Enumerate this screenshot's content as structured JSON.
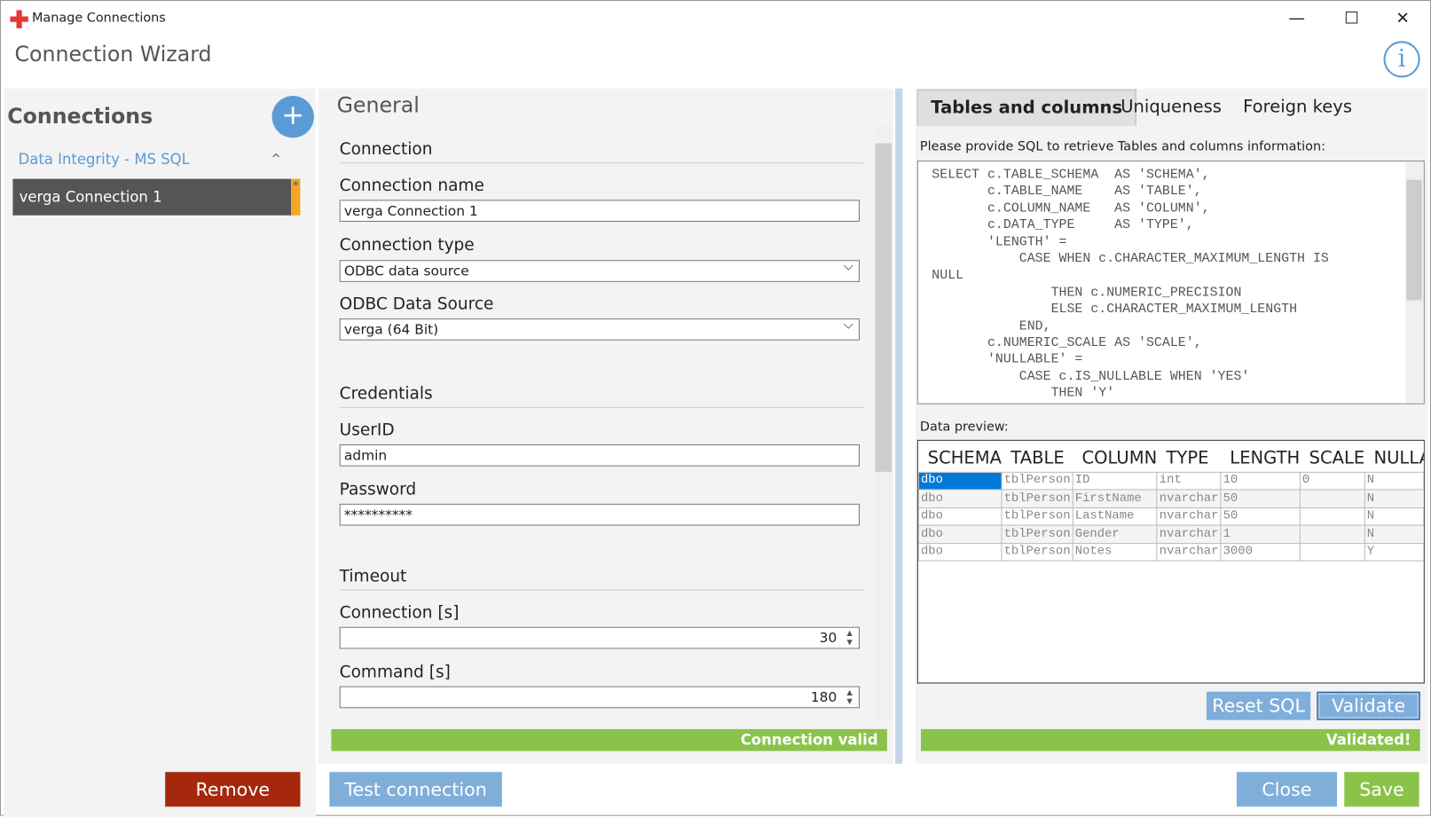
{
  "window": {
    "title": "Manage Connections",
    "minimize": "—",
    "maximize": "☐",
    "close": "✕",
    "brand_color": "#e53935"
  },
  "header": {
    "title": "Connection Wizard",
    "info_icon": "i"
  },
  "sidebar": {
    "title": "Connections",
    "add_label": "+",
    "group": "Data Integrity - MS SQL",
    "group_chevron": "^",
    "items": [
      {
        "label": "verga Connection 1",
        "modified": "*"
      }
    ],
    "remove_label": "Remove"
  },
  "general": {
    "title": "General",
    "connection": {
      "section": "Connection",
      "name_label": "Connection name",
      "name_value": "verga Connection 1",
      "type_label": "Connection type",
      "type_value": "ODBC data source",
      "odbc_label": "ODBC Data Source",
      "odbc_value": "verga (64 Bit)"
    },
    "credentials": {
      "section": "Credentials",
      "user_label": "UserID",
      "user_value": "admin",
      "password_label": "Password",
      "password_value": "**********"
    },
    "timeout": {
      "section": "Timeout",
      "connection_label": "Connection [s]",
      "connection_value": "30",
      "command_label": "Command [s]",
      "command_value": "180"
    },
    "status": "Connection valid",
    "test_label": "Test connection"
  },
  "right": {
    "tabs": [
      {
        "label": "Tables and columns",
        "active": true
      },
      {
        "label": "Uniqueness"
      },
      {
        "label": "Foreign keys"
      }
    ],
    "prompt": "Please provide SQL to retrieve Tables and columns information:",
    "sql": "SELECT c.TABLE_SCHEMA  AS 'SCHEMA',\n       c.TABLE_NAME    AS 'TABLE',\n       c.COLUMN_NAME   AS 'COLUMN',\n       c.DATA_TYPE     AS 'TYPE',\n       'LENGTH' =\n           CASE WHEN c.CHARACTER_MAXIMUM_LENGTH IS\nNULL\n               THEN c.NUMERIC_PRECISION\n               ELSE c.CHARACTER_MAXIMUM_LENGTH\n           END,\n       c.NUMERIC_SCALE AS 'SCALE',\n       'NULLABLE' =\n           CASE c.IS_NULLABLE WHEN 'YES'\n               THEN 'Y'",
    "preview_label": "Data preview:",
    "columns": [
      "SCHEMA",
      "TABLE",
      "COLUMN",
      "TYPE",
      "LENGTH",
      "SCALE",
      "NULLABLE"
    ],
    "rows": [
      [
        "dbo",
        "tblPerson",
        "ID",
        "int",
        "10",
        "0",
        "N"
      ],
      [
        "dbo",
        "tblPerson",
        "FirstName",
        "nvarchar",
        "50",
        "",
        "N"
      ],
      [
        "dbo",
        "tblPerson",
        "LastName",
        "nvarchar",
        "50",
        "",
        "N"
      ],
      [
        "dbo",
        "tblPerson",
        "Gender",
        "nvarchar",
        "1",
        "",
        "N"
      ],
      [
        "dbo",
        "tblPerson",
        "Notes",
        "nvarchar",
        "3000",
        "",
        "Y"
      ]
    ],
    "reset_label": "Reset SQL",
    "validate_label": "Validate",
    "status": "Validated!"
  },
  "footer": {
    "close_label": "Close",
    "save_label": "Save"
  },
  "colors": {
    "accent": "#5b9bd5",
    "success": "#8bc34a",
    "danger": "#a5280d",
    "save": "#8bc34a",
    "modified": "#f5a623"
  }
}
